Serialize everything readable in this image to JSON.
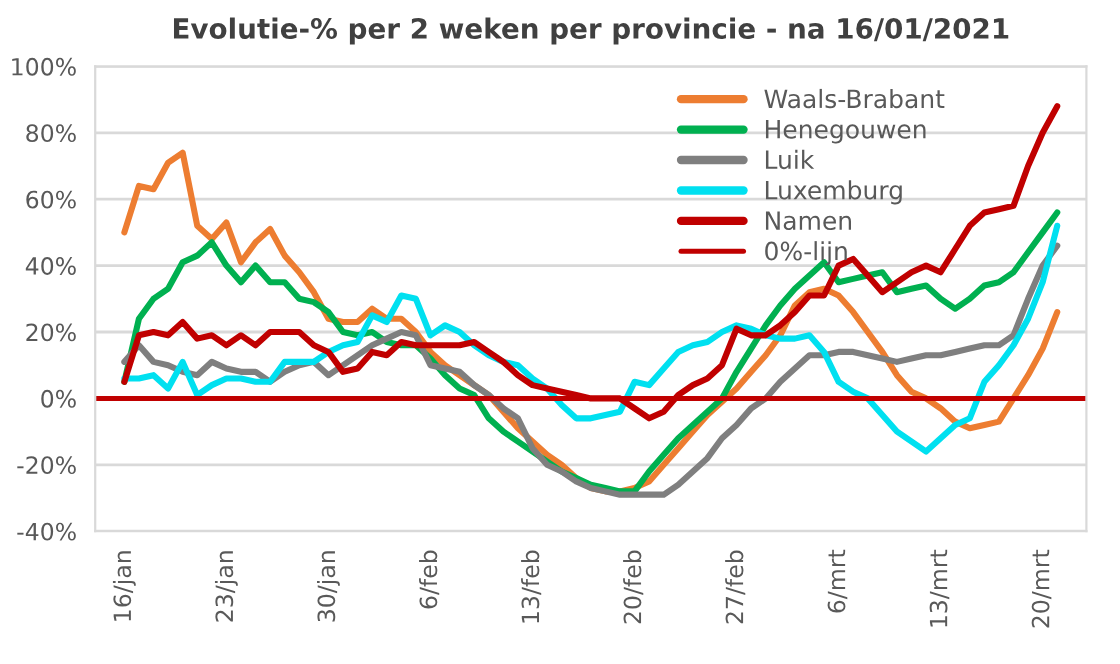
{
  "chart_data": {
    "type": "line",
    "title": "Evolutie-% per 2 weken per provincie - na 16/01/2021",
    "x": [
      "2021-01-16",
      "2021-01-17",
      "2021-01-18",
      "2021-01-19",
      "2021-01-20",
      "2021-01-21",
      "2021-01-22",
      "2021-01-23",
      "2021-01-24",
      "2021-01-25",
      "2021-01-26",
      "2021-01-27",
      "2021-01-28",
      "2021-01-29",
      "2021-01-30",
      "2021-01-31",
      "2021-02-01",
      "2021-02-02",
      "2021-02-03",
      "2021-02-04",
      "2021-02-05",
      "2021-02-06",
      "2021-02-07",
      "2021-02-08",
      "2021-02-09",
      "2021-02-10",
      "2021-02-11",
      "2021-02-12",
      "2021-02-13",
      "2021-02-14",
      "2021-02-15",
      "2021-02-16",
      "2021-02-17",
      "2021-02-18",
      "2021-02-19",
      "2021-02-20",
      "2021-02-21",
      "2021-02-22",
      "2021-02-23",
      "2021-02-24",
      "2021-02-25",
      "2021-02-26",
      "2021-02-27",
      "2021-02-28",
      "2021-03-01",
      "2021-03-02",
      "2021-03-03",
      "2021-03-04",
      "2021-03-05",
      "2021-03-06",
      "2021-03-07",
      "2021-03-08",
      "2021-03-09",
      "2021-03-10",
      "2021-03-11",
      "2021-03-12",
      "2021-03-13",
      "2021-03-14",
      "2021-03-15",
      "2021-03-16",
      "2021-03-17",
      "2021-03-18",
      "2021-03-19",
      "2021-03-20",
      "2021-03-21"
    ],
    "series": [
      {
        "name": "Waals-Brabant",
        "color": "#ed7d31",
        "values": [
          50,
          64,
          63,
          71,
          74,
          52,
          48,
          53,
          41,
          47,
          51,
          43,
          38,
          32,
          24,
          23,
          23,
          27,
          24,
          24,
          20,
          14,
          10,
          7,
          4,
          1,
          -4,
          -9,
          -13,
          -17,
          -20,
          -24,
          -27,
          -28,
          -28,
          -27,
          -25,
          -20,
          -15,
          -10,
          -5,
          -1,
          3,
          8,
          13,
          19,
          28,
          32,
          33,
          31,
          26,
          20,
          14,
          7,
          2,
          0,
          -3,
          -7,
          -9,
          -8,
          -7,
          0,
          7,
          15,
          26
        ]
      },
      {
        "name": "Henegouwen",
        "color": "#00b050",
        "values": [
          5,
          24,
          30,
          33,
          41,
          43,
          47,
          40,
          35,
          40,
          35,
          35,
          30,
          29,
          26,
          20,
          19,
          20,
          17,
          16,
          16,
          12,
          7,
          3,
          1,
          -6,
          -10,
          -13,
          -16,
          -19,
          -22,
          -24,
          -26,
          -27,
          -28,
          -28,
          -22,
          -17,
          -12,
          -8,
          -4,
          0,
          8,
          15,
          22,
          28,
          33,
          37,
          41,
          35,
          36,
          37,
          38,
          32,
          33,
          34,
          30,
          27,
          30,
          34,
          35,
          38,
          44,
          50,
          56
        ]
      },
      {
        "name": "Luik",
        "color": "#7f7f7f",
        "values": [
          11,
          16,
          11,
          10,
          8,
          7,
          11,
          9,
          8,
          8,
          5,
          8,
          10,
          11,
          7,
          10,
          13,
          16,
          18,
          20,
          19,
          10,
          9,
          8,
          4,
          1,
          -3,
          -6,
          -15,
          -20,
          -22,
          -25,
          -27,
          -28,
          -29,
          -29,
          -29,
          -29,
          -26,
          -22,
          -18,
          -12,
          -8,
          -3,
          0,
          5,
          9,
          13,
          13,
          14,
          14,
          13,
          12,
          11,
          12,
          13,
          13,
          14,
          15,
          16,
          16,
          19,
          30,
          40,
          46
        ]
      },
      {
        "name": "Luxemburg",
        "color": "#00e0f0",
        "values": [
          6,
          6,
          7,
          3,
          11,
          1,
          4,
          6,
          6,
          5,
          5,
          11,
          11,
          11,
          14,
          16,
          17,
          25,
          23,
          31,
          30,
          19,
          22,
          20,
          16,
          13,
          11,
          10,
          6,
          3,
          -2,
          -6,
          -6,
          -5,
          -4,
          5,
          4,
          9,
          14,
          16,
          17,
          20,
          22,
          21,
          19,
          18,
          18,
          19,
          14,
          5,
          2,
          0,
          -5,
          -10,
          -13,
          -16,
          -12,
          -8,
          -6,
          5,
          10,
          16,
          24,
          35,
          52
        ]
      },
      {
        "name": "Namen",
        "color": "#c00000",
        "values": [
          5,
          19,
          20,
          19,
          23,
          18,
          19,
          16,
          19,
          16,
          20,
          20,
          20,
          16,
          14,
          8,
          9,
          14,
          13,
          17,
          16,
          16,
          16,
          16,
          17,
          14,
          11,
          7,
          4,
          3,
          2,
          1,
          0,
          0,
          0,
          -3,
          -6,
          -4,
          1,
          4,
          6,
          10,
          21,
          19,
          19,
          22,
          26,
          31,
          31,
          40,
          42,
          37,
          32,
          35,
          38,
          40,
          38,
          45,
          52,
          56,
          57,
          58,
          70,
          80,
          88
        ]
      }
    ],
    "ref_lines": [
      {
        "axis": "y",
        "value": 0,
        "label": "0%-lijn",
        "color": "#c00000",
        "line_style": "solid"
      }
    ],
    "xlim": [
      "2021-01-14",
      "2021-03-23"
    ],
    "xticks": [
      {
        "value": "2021-01-16",
        "label": "16/jan"
      },
      {
        "value": "2021-01-23",
        "label": "23/jan"
      },
      {
        "value": "2021-01-30",
        "label": "30/jan"
      },
      {
        "value": "2021-02-06",
        "label": "6/feb"
      },
      {
        "value": "2021-02-13",
        "label": "13/feb"
      },
      {
        "value": "2021-02-20",
        "label": "20/feb"
      },
      {
        "value": "2021-02-27",
        "label": "27/feb"
      },
      {
        "value": "2021-03-06",
        "label": "6/mrt"
      },
      {
        "value": "2021-03-13",
        "label": "13/mrt"
      },
      {
        "value": "2021-03-20",
        "label": "20/mrt"
      }
    ],
    "ylim": [
      -40,
      100
    ],
    "yticks": [
      {
        "value": -40,
        "label": "-40%"
      },
      {
        "value": -20,
        "label": "-20%"
      },
      {
        "value": 0,
        "label": "0%"
      },
      {
        "value": 20,
        "label": "20%"
      },
      {
        "value": 40,
        "label": "40%"
      },
      {
        "value": 60,
        "label": "60%"
      },
      {
        "value": 80,
        "label": "80%"
      },
      {
        "value": 100,
        "label": "100%"
      }
    ],
    "grid": "y",
    "legend": "top right",
    "marker": "none",
    "line_style": "solid"
  }
}
